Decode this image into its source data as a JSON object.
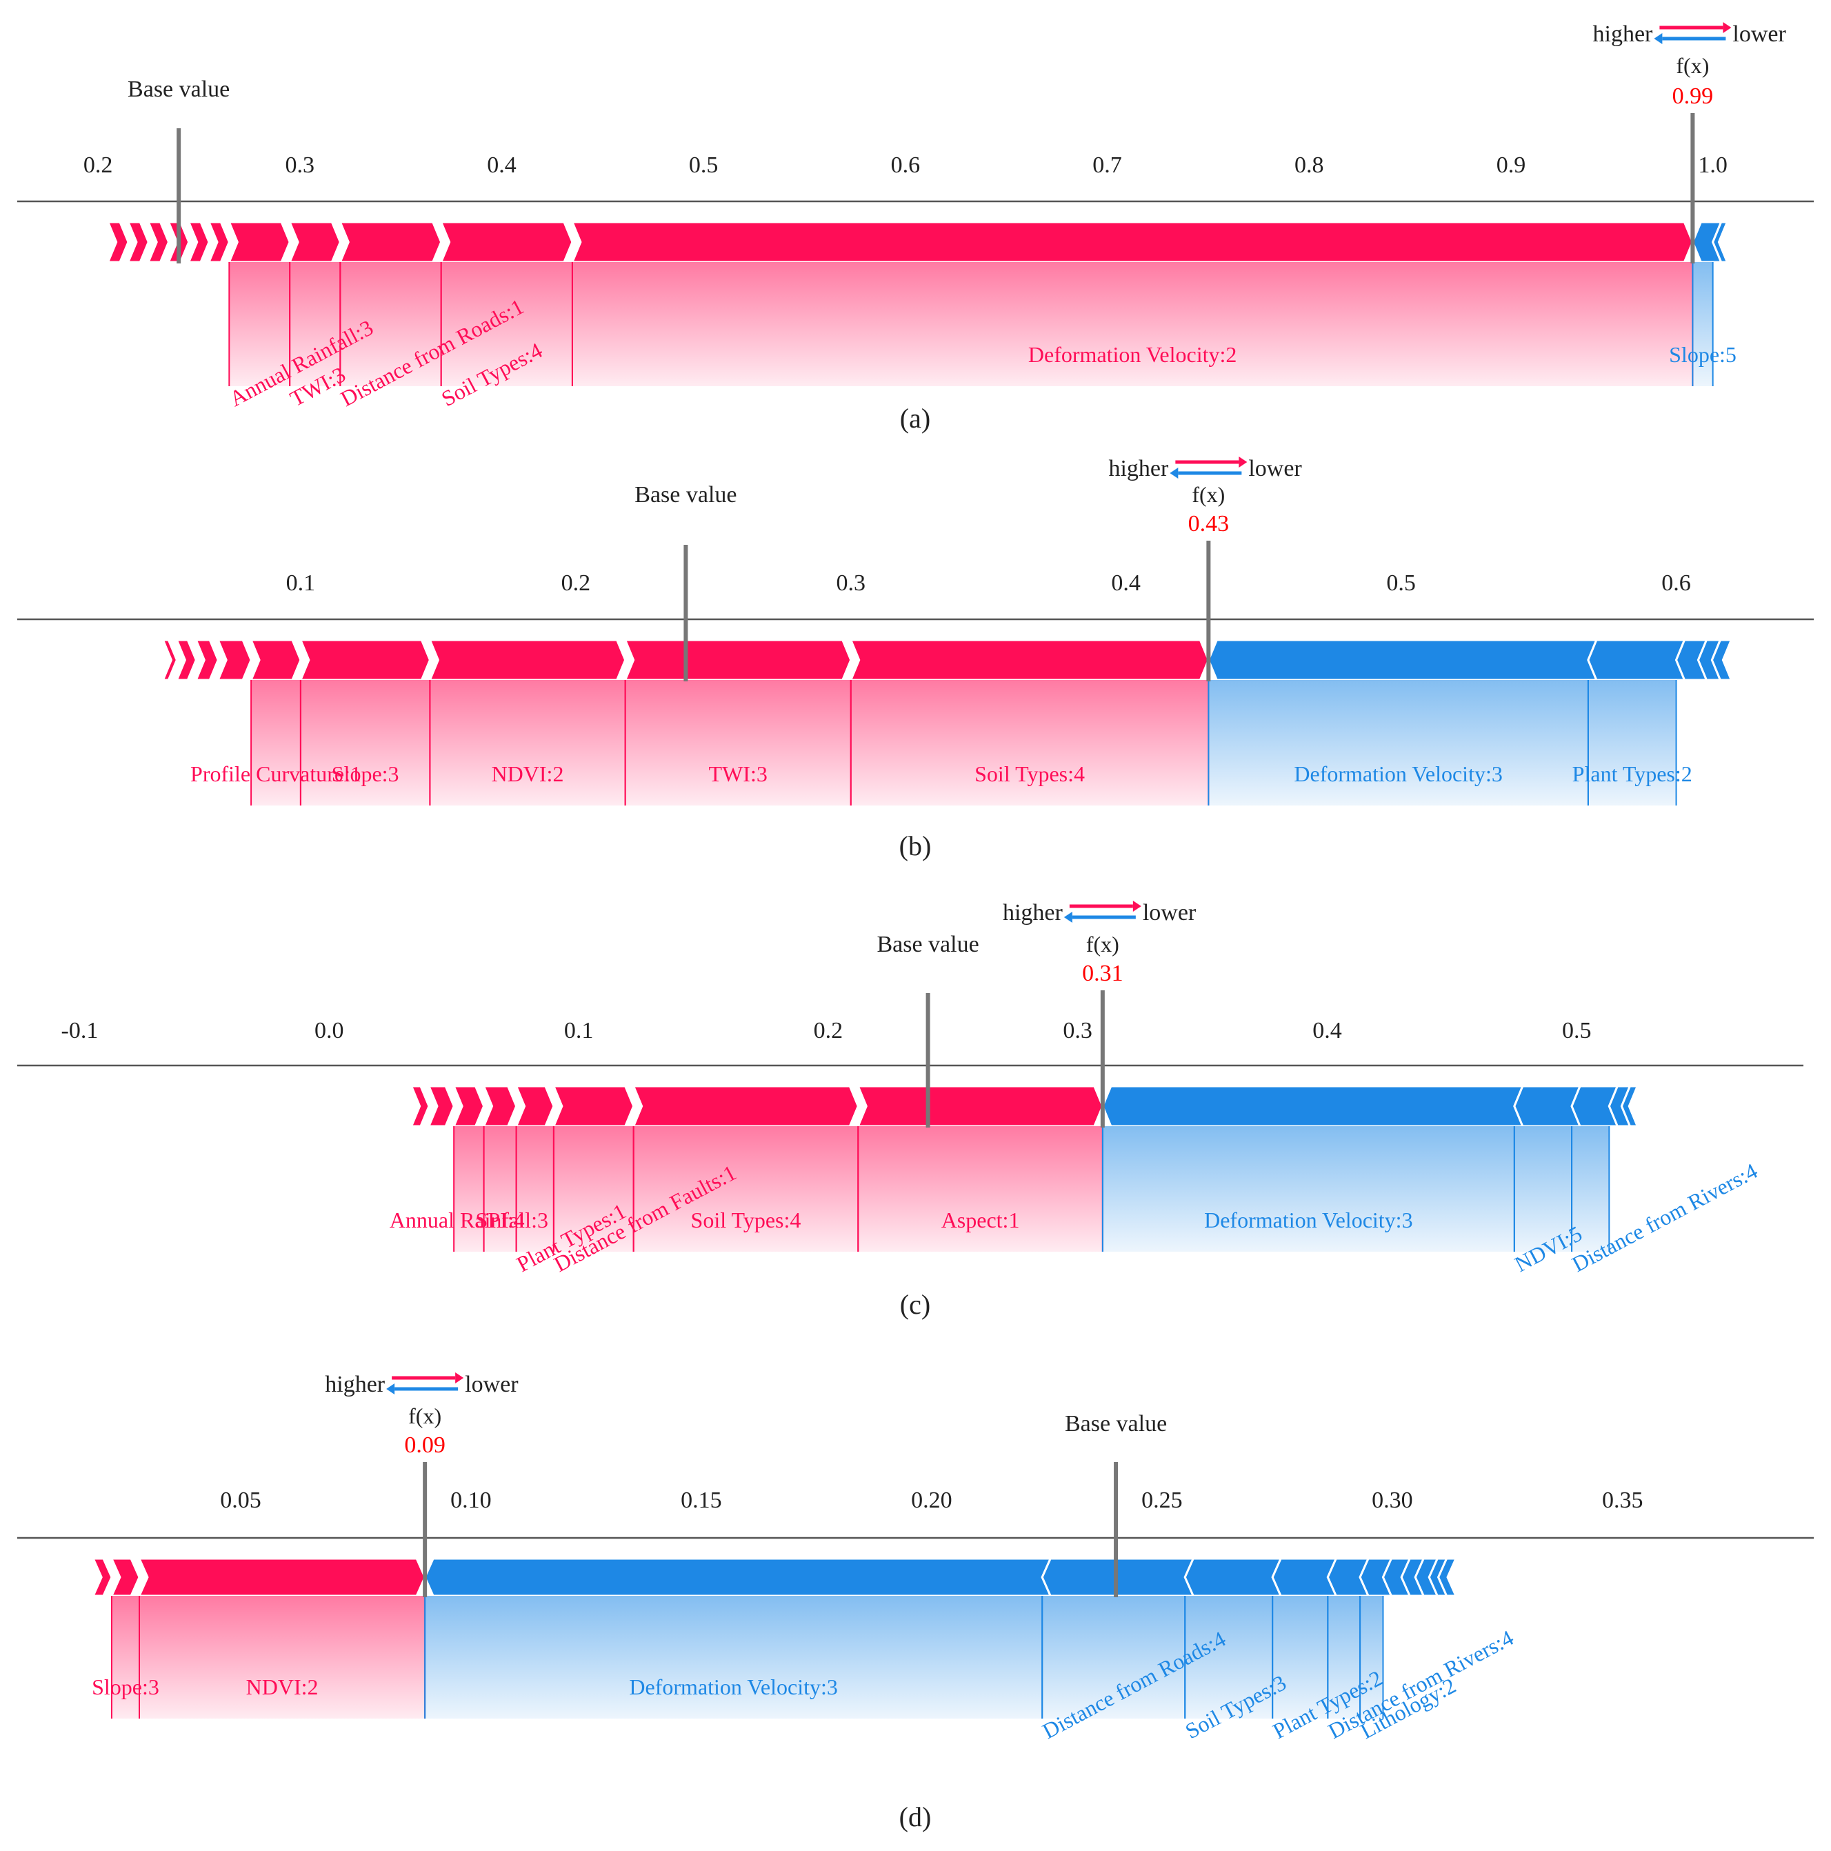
{
  "legend": {
    "higher": "higher",
    "lower": "lower"
  },
  "colors": {
    "positive": "#ff0d57",
    "negative": "#1e88e5",
    "axis": "#555555",
    "fx": "#ff0000",
    "text": "#222222"
  },
  "chart_data": [
    {
      "type": "force",
      "panel_label": "(a)",
      "base_label": "Base value",
      "fx_label": "f(x)",
      "fx_text": "0.99",
      "base_value": 0.24,
      "fx_value": 0.99,
      "xlim": [
        0.16,
        1.05
      ],
      "ticks": [
        0.2,
        0.3,
        0.4,
        0.5,
        0.6,
        0.7,
        0.8,
        0.9,
        1.0
      ],
      "tick_labels": [
        "0.2",
        "0.3",
        "0.4",
        "0.5",
        "0.6",
        "0.7",
        "0.8",
        "0.9",
        "1.0"
      ],
      "positive": [
        {
          "label": "Deformation Velocity:2",
          "start": 0.435,
          "end": 0.99,
          "label_style": "flat"
        },
        {
          "label": "Soil Types:4",
          "start": 0.37,
          "end": 0.435,
          "label_style": "tilt"
        },
        {
          "label": "Distance from Roads:1",
          "start": 0.32,
          "end": 0.37,
          "label_style": "tilt"
        },
        {
          "label": "TWI:3",
          "start": 0.295,
          "end": 0.32,
          "label_style": "tilt"
        },
        {
          "label": "Annual Rainfall:3",
          "start": 0.265,
          "end": 0.295,
          "label_style": "tilt"
        },
        {
          "label": "",
          "start": 0.255,
          "end": 0.265
        },
        {
          "label": "",
          "start": 0.245,
          "end": 0.255
        },
        {
          "label": "",
          "start": 0.235,
          "end": 0.245
        },
        {
          "label": "",
          "start": 0.225,
          "end": 0.235
        },
        {
          "label": "",
          "start": 0.215,
          "end": 0.225
        },
        {
          "label": "",
          "start": 0.205,
          "end": 0.215
        }
      ],
      "negative": [
        {
          "label": "Slope:5",
          "start": 0.99,
          "end": 1.0,
          "label_style": "flat"
        },
        {
          "label": "",
          "start": 1.0,
          "end": 1.003
        }
      ]
    },
    {
      "type": "force",
      "panel_label": "(b)",
      "base_label": "Base value",
      "fx_label": "f(x)",
      "fx_text": "0.43",
      "base_value": 0.24,
      "fx_value": 0.43,
      "xlim": [
        -0.003,
        0.65
      ],
      "ticks": [
        0.1,
        0.2,
        0.3,
        0.4,
        0.5,
        0.6
      ],
      "tick_labels": [
        "0.1",
        "0.2",
        "0.3",
        "0.4",
        "0.5",
        "0.6"
      ],
      "positive": [
        {
          "label": "Soil Types:4",
          "start": 0.3,
          "end": 0.43,
          "label_style": "flat"
        },
        {
          "label": "TWI:3",
          "start": 0.218,
          "end": 0.3,
          "label_style": "flat"
        },
        {
          "label": "NDVI:2",
          "start": 0.147,
          "end": 0.218,
          "label_style": "flat"
        },
        {
          "label": "Slope:3",
          "start": 0.1,
          "end": 0.147,
          "label_style": "flat"
        },
        {
          "label": "Profile Curvature:1",
          "start": 0.082,
          "end": 0.1,
          "label_style": "flat"
        },
        {
          "label": "",
          "start": 0.07,
          "end": 0.082
        },
        {
          "label": "",
          "start": 0.062,
          "end": 0.07
        },
        {
          "label": "",
          "start": 0.055,
          "end": 0.062
        },
        {
          "label": "",
          "start": 0.05,
          "end": 0.055
        }
      ],
      "negative": [
        {
          "label": "Deformation Velocity:3",
          "start": 0.43,
          "end": 0.568,
          "label_style": "flat"
        },
        {
          "label": "Plant Types:2",
          "start": 0.568,
          "end": 0.6,
          "label_style": "flat"
        },
        {
          "label": "",
          "start": 0.6,
          "end": 0.608
        },
        {
          "label": "",
          "start": 0.608,
          "end": 0.613
        },
        {
          "label": "",
          "start": 0.613,
          "end": 0.617
        }
      ]
    },
    {
      "type": "force",
      "panel_label": "(c)",
      "base_label": "Base value",
      "fx_label": "f(x)",
      "fx_text": "0.31",
      "base_value": 0.24,
      "fx_value": 0.31,
      "xlim": [
        -0.125,
        0.595
      ],
      "ticks": [
        -0.1,
        0.0,
        0.1,
        0.2,
        0.3,
        0.4,
        0.5
      ],
      "tick_labels": [
        "-0.1",
        "0.0",
        "0.1",
        "0.2",
        "0.3",
        "0.4",
        "0.5"
      ],
      "positive": [
        {
          "label": "Aspect:1",
          "start": 0.212,
          "end": 0.31,
          "label_style": "flat"
        },
        {
          "label": "Soil Types:4",
          "start": 0.122,
          "end": 0.212,
          "label_style": "flat"
        },
        {
          "label": "Distance from Faults:1",
          "start": 0.09,
          "end": 0.122,
          "label_style": "tilt"
        },
        {
          "label": "Plant Types:1",
          "start": 0.075,
          "end": 0.09,
          "label_style": "tilt"
        },
        {
          "label": "SPI:4",
          "start": 0.062,
          "end": 0.075,
          "label_style": "flat"
        },
        {
          "label": "Annual Rainfall:3",
          "start": 0.05,
          "end": 0.062,
          "label_style": "flat"
        },
        {
          "label": "",
          "start": 0.04,
          "end": 0.05
        },
        {
          "label": "",
          "start": 0.033,
          "end": 0.04
        }
      ],
      "negative": [
        {
          "label": "Deformation Velocity:3",
          "start": 0.31,
          "end": 0.475,
          "label_style": "flat"
        },
        {
          "label": "NDVI:5",
          "start": 0.475,
          "end": 0.498,
          "label_style": "tilt"
        },
        {
          "label": "Distance from Rivers:4",
          "start": 0.498,
          "end": 0.513,
          "label_style": "tilt"
        },
        {
          "label": "",
          "start": 0.513,
          "end": 0.518
        },
        {
          "label": "",
          "start": 0.518,
          "end": 0.521
        }
      ]
    },
    {
      "type": "force",
      "panel_label": "(d)",
      "base_label": "Base value",
      "fx_label": "f(x)",
      "fx_text": "0.09",
      "base_value": 0.24,
      "fx_value": 0.09,
      "xlim": [
        0.0015,
        0.3915
      ],
      "ticks": [
        0.05,
        0.1,
        0.15,
        0.2,
        0.25,
        0.3,
        0.35
      ],
      "tick_labels": [
        "0.05",
        "0.10",
        "0.15",
        "0.20",
        "0.25",
        "0.30",
        "0.35"
      ],
      "positive": [
        {
          "label": "NDVI:2",
          "start": 0.028,
          "end": 0.09,
          "label_style": "flat"
        },
        {
          "label": "Slope:3",
          "start": 0.022,
          "end": 0.028,
          "label_style": "flat"
        },
        {
          "label": "",
          "start": 0.018,
          "end": 0.022
        }
      ],
      "negative": [
        {
          "label": "Deformation Velocity:3",
          "start": 0.09,
          "end": 0.224,
          "label_style": "flat"
        },
        {
          "label": "Distance from Roads:4",
          "start": 0.224,
          "end": 0.255,
          "label_style": "tilt"
        },
        {
          "label": "Soil Types:3",
          "start": 0.255,
          "end": 0.274,
          "label_style": "tilt"
        },
        {
          "label": "Plant Types:2",
          "start": 0.274,
          "end": 0.286,
          "label_style": "tilt"
        },
        {
          "label": "Distance from Rivers:4",
          "start": 0.286,
          "end": 0.293,
          "label_style": "tilt"
        },
        {
          "label": "Lithology:2",
          "start": 0.293,
          "end": 0.298,
          "label_style": "tilt"
        },
        {
          "label": "",
          "start": 0.298,
          "end": 0.302
        },
        {
          "label": "",
          "start": 0.302,
          "end": 0.305
        },
        {
          "label": "",
          "start": 0.305,
          "end": 0.308
        },
        {
          "label": "",
          "start": 0.308,
          "end": 0.31
        },
        {
          "label": "",
          "start": 0.31,
          "end": 0.312
        }
      ]
    }
  ]
}
